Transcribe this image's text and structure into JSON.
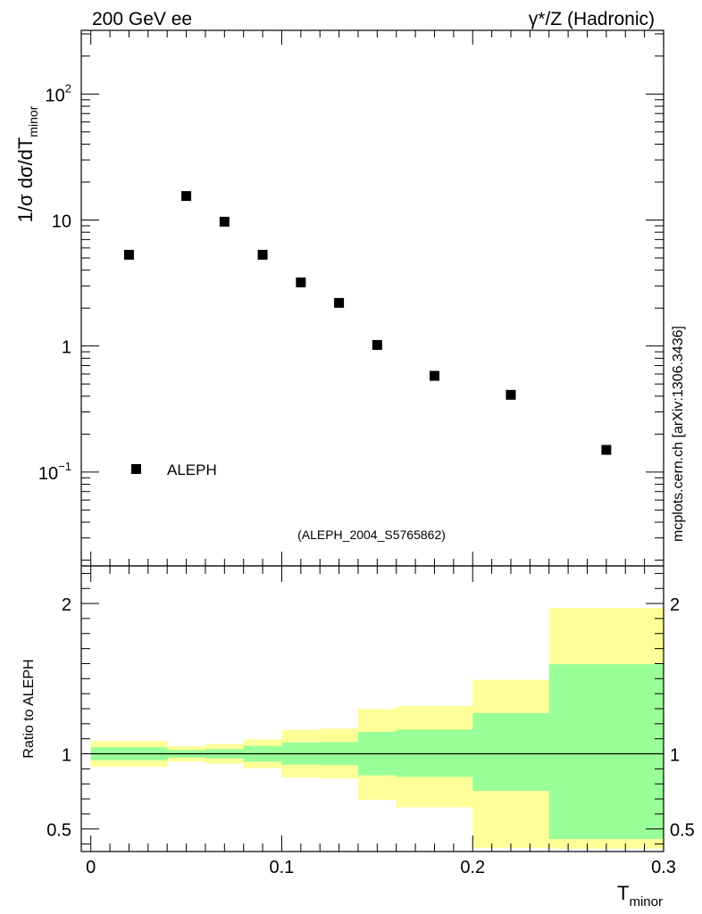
{
  "header": {
    "left_label": "200 GeV ee",
    "right_label": "γ*/Z (Hadronic)",
    "side_label": "mcplots.cern.ch [arXiv:1306.3436]",
    "analysis_label": "(ALEPH_2004_S5765862)"
  },
  "colors": {
    "band_outer": "#ffff99",
    "band_inner": "#99ff99",
    "analysis_label": "#999999",
    "axis": "#000000"
  },
  "chart_data": [
    {
      "type": "scatter",
      "name": "main",
      "yscale": "log",
      "ylabel": {
        "prefix": "1/σ  dσ/dT",
        "sub": "minor"
      },
      "xlim": [
        -0.005,
        0.3
      ],
      "ylim": [
        0.018,
        320
      ],
      "ytick_labels": [
        {
          "value": 0.1,
          "base": "10",
          "exp": "−1"
        },
        {
          "value": 1,
          "base": "1",
          "exp": ""
        },
        {
          "value": 10,
          "base": "10",
          "exp": ""
        },
        {
          "value": 100,
          "base": "10",
          "exp": "2"
        }
      ],
      "series": [
        {
          "name": "ALEPH",
          "marker": "square",
          "x": [
            0.02,
            0.05,
            0.07,
            0.09,
            0.11,
            0.13,
            0.15,
            0.18,
            0.22,
            0.27
          ],
          "y": [
            5.3,
            15.5,
            9.7,
            5.3,
            3.2,
            2.2,
            1.02,
            0.58,
            0.41,
            0.15
          ]
        }
      ],
      "legend": {
        "entries": [
          "ALEPH"
        ],
        "position": "bottom-left"
      }
    },
    {
      "type": "area",
      "name": "ratio",
      "yscale": "linear",
      "ylabel": "Ratio to ALEPH",
      "xlabel": {
        "base": "T",
        "sub": "minor"
      },
      "xlim": [
        -0.005,
        0.3
      ],
      "ylim": [
        0.35,
        2.25
      ],
      "xticks": [
        0,
        0.1,
        0.2,
        0.3
      ],
      "xtick_labels": [
        "0",
        "0.1",
        "0.2",
        "0.3"
      ],
      "yticks": [
        0.5,
        1,
        2
      ],
      "ytick_labels": [
        "0.5",
        "1",
        "2"
      ],
      "reference_line": 1,
      "bin_edges": [
        0,
        0.04,
        0.06,
        0.08,
        0.1,
        0.12,
        0.14,
        0.16,
        0.2,
        0.24,
        0.3
      ],
      "inner_band": {
        "low": [
          0.957,
          0.975,
          0.968,
          0.948,
          0.928,
          0.924,
          0.857,
          0.847,
          0.754,
          0.433,
          0.433
        ],
        "high": [
          1.043,
          1.025,
          1.032,
          1.052,
          1.075,
          1.078,
          1.146,
          1.161,
          1.271,
          1.596,
          1.596
        ]
      },
      "outer_band": {
        "low": [
          0.913,
          0.949,
          0.935,
          0.904,
          0.843,
          0.836,
          0.694,
          0.644,
          0.374,
          0.369,
          0.369
        ],
        "high": [
          1.087,
          1.051,
          1.065,
          1.096,
          1.159,
          1.168,
          1.298,
          1.318,
          1.493,
          1.97,
          1.97
        ]
      }
    }
  ]
}
